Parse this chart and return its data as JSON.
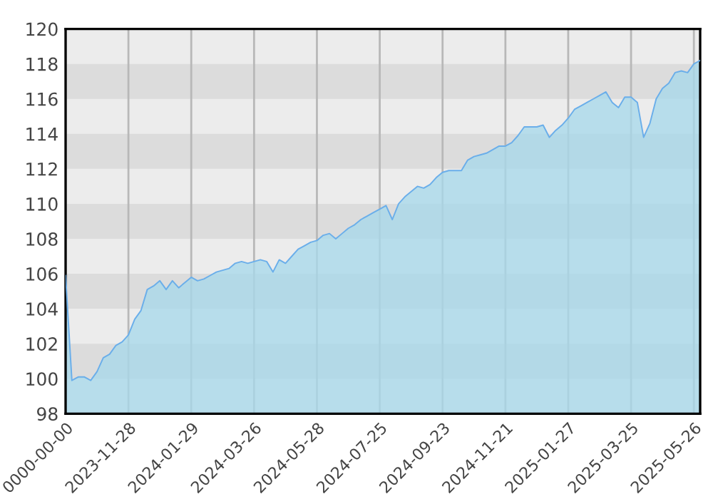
{
  "chart_data": {
    "type": "area",
    "categories": [
      "0000-00-00",
      null,
      null,
      null,
      null,
      null,
      null,
      null,
      null,
      null,
      "2023-11-28",
      null,
      null,
      null,
      null,
      null,
      null,
      null,
      null,
      null,
      "2024-01-29",
      null,
      null,
      null,
      null,
      null,
      null,
      null,
      null,
      null,
      "2024-03-26",
      null,
      null,
      null,
      null,
      null,
      null,
      null,
      null,
      null,
      "2024-05-28",
      null,
      null,
      null,
      null,
      null,
      null,
      null,
      null,
      null,
      "2024-07-25",
      null,
      null,
      null,
      null,
      null,
      null,
      null,
      null,
      null,
      "2024-09-23",
      null,
      null,
      null,
      null,
      null,
      null,
      null,
      null,
      null,
      "2024-11-21",
      null,
      null,
      null,
      null,
      null,
      null,
      null,
      null,
      null,
      "2025-01-27",
      null,
      null,
      null,
      null,
      null,
      null,
      null,
      null,
      null,
      "2025-03-25",
      null,
      null,
      null,
      null,
      null,
      null,
      null,
      null,
      null,
      "2025-05-26",
      null
    ],
    "series": [
      {
        "color": "#6aaeea",
        "values": [
          105.9,
          99.9,
          100.1,
          100.1,
          99.9,
          100.4,
          101.2,
          101.4,
          101.9,
          102.1,
          102.5,
          103.4,
          103.9,
          105.1,
          105.3,
          105.6,
          105.1,
          105.6,
          105.2,
          105.5,
          105.8,
          105.6,
          105.7,
          105.9,
          106.1,
          106.2,
          106.3,
          106.6,
          106.7,
          106.6,
          106.7,
          106.8,
          106.7,
          106.1,
          106.8,
          106.6,
          107.0,
          107.4,
          107.6,
          107.8,
          107.9,
          108.2,
          108.3,
          108.0,
          108.3,
          108.6,
          108.8,
          109.1,
          109.3,
          109.5,
          109.7,
          109.9,
          109.1,
          110.0,
          110.4,
          110.7,
          111.0,
          110.9,
          111.1,
          111.5,
          111.8,
          111.9,
          111.9,
          111.9,
          112.5,
          112.7,
          112.8,
          112.9,
          113.1,
          113.3,
          113.3,
          113.5,
          113.9,
          114.4,
          114.4,
          114.4,
          114.5,
          113.8,
          114.2,
          114.5,
          114.9,
          115.4,
          115.6,
          115.8,
          116.0,
          116.2,
          116.4,
          115.8,
          115.5,
          116.1,
          116.1,
          115.8,
          113.8,
          114.6,
          116.0,
          116.6,
          116.9,
          117.5,
          117.6,
          117.5,
          118.0,
          118.2
        ]
      }
    ],
    "ylim": [
      98,
      120
    ],
    "yticks": [
      98,
      100,
      102,
      104,
      106,
      108,
      110,
      112,
      114,
      116,
      118,
      120
    ],
    "bands": [
      {
        "axis": "y",
        "from": 100,
        "to": 102,
        "color": "#dcdcdc"
      },
      {
        "axis": "y",
        "from": 104,
        "to": 106,
        "color": "#dcdcdc"
      },
      {
        "axis": "y",
        "from": 108,
        "to": 110,
        "color": "#dcdcdc"
      },
      {
        "axis": "y",
        "from": 112,
        "to": 114,
        "color": "#dcdcdc"
      },
      {
        "axis": "y",
        "from": 116,
        "to": 118,
        "color": "#dcdcdc"
      }
    ],
    "grid": "x"
  }
}
